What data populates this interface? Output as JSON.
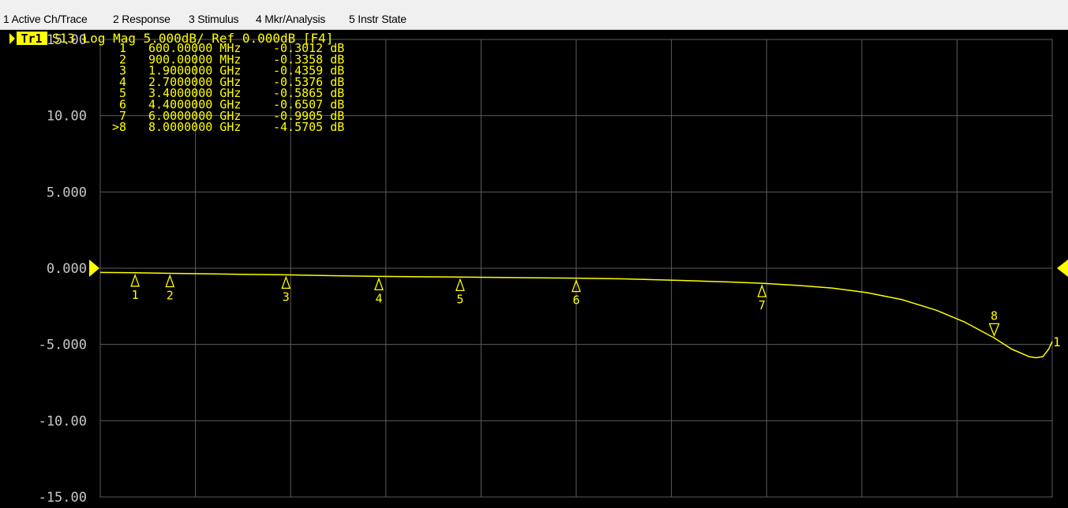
{
  "menu": {
    "items": [
      {
        "label": "1 Active Ch/Trace"
      },
      {
        "label": "2 Response"
      },
      {
        "label": "3 Stimulus"
      },
      {
        "label": "4 Mkr/Analysis"
      },
      {
        "label": "5 Instr State"
      }
    ]
  },
  "trace": {
    "badge": "Tr1",
    "description": "S13 Log Mag 5.000dB/ Ref 0.000dB [F4]",
    "end_label": "1"
  },
  "colors": {
    "trace": "#ffff00",
    "grid": "#5c5c5c",
    "axis_text": "#c8c8c8",
    "background": "#000000",
    "badge_bg": "#ffff00",
    "badge_text": "#000000"
  },
  "chart_data": {
    "type": "line",
    "title": "S13 Log Mag 5.000dB/ Ref 0.000dB [F4]",
    "ylabel": "",
    "xlabel": "",
    "ylim": [
      -15,
      15
    ],
    "xlim_ghz": [
      0.3,
      8.5
    ],
    "y_ticks": [
      "15.00",
      "10.00",
      "5.000",
      "0.000",
      "-5.000",
      "-10.00",
      "-15.00"
    ],
    "grid": true,
    "reference_level_db": 0,
    "series": [
      {
        "points": [
          [
            0.3,
            -0.28
          ],
          [
            0.6,
            -0.3012
          ],
          [
            0.9,
            -0.3358
          ],
          [
            1.5,
            -0.4
          ],
          [
            1.9,
            -0.4359
          ],
          [
            2.3,
            -0.49
          ],
          [
            2.7,
            -0.5376
          ],
          [
            3.0,
            -0.56
          ],
          [
            3.4,
            -0.5865
          ],
          [
            3.9,
            -0.62
          ],
          [
            4.4,
            -0.6507
          ],
          [
            4.8,
            -0.7
          ],
          [
            5.3,
            -0.8
          ],
          [
            5.7,
            -0.9
          ],
          [
            6.0,
            -0.9905
          ],
          [
            6.3,
            -1.12
          ],
          [
            6.6,
            -1.3
          ],
          [
            6.9,
            -1.6
          ],
          [
            7.2,
            -2.05
          ],
          [
            7.5,
            -2.75
          ],
          [
            7.75,
            -3.55
          ],
          [
            8.0,
            -4.5705
          ],
          [
            8.15,
            -5.3
          ],
          [
            8.3,
            -5.8
          ],
          [
            8.36,
            -5.87
          ],
          [
            8.42,
            -5.8
          ],
          [
            8.47,
            -5.3
          ],
          [
            8.5,
            -4.8
          ]
        ]
      }
    ],
    "markers": [
      {
        "id": "1",
        "readout_id": "1",
        "freq": "600.00000 MHz",
        "freq_ghz": 0.6,
        "value": "-0.3012 dB",
        "db": -0.3012,
        "label_below": true
      },
      {
        "id": "2",
        "readout_id": "2",
        "freq": "900.00000 MHz",
        "freq_ghz": 0.9,
        "value": "-0.3358 dB",
        "db": -0.3358,
        "label_below": true
      },
      {
        "id": "3",
        "readout_id": "3",
        "freq": "1.9000000 GHz",
        "freq_ghz": 1.9,
        "value": "-0.4359 dB",
        "db": -0.4359,
        "label_below": true
      },
      {
        "id": "4",
        "readout_id": "4",
        "freq": "2.7000000 GHz",
        "freq_ghz": 2.7,
        "value": "-0.5376 dB",
        "db": -0.5376,
        "label_below": true
      },
      {
        "id": "5",
        "readout_id": "5",
        "freq": "3.4000000 GHz",
        "freq_ghz": 3.4,
        "value": "-0.5865 dB",
        "db": -0.5865,
        "label_below": true
      },
      {
        "id": "6",
        "readout_id": "6",
        "freq": "4.4000000 GHz",
        "freq_ghz": 4.4,
        "value": "-0.6507 dB",
        "db": -0.6507,
        "label_below": true
      },
      {
        "id": "7",
        "readout_id": "7",
        "freq": "6.0000000 GHz",
        "freq_ghz": 6.0,
        "value": "-0.9905 dB",
        "db": -0.9905,
        "label_below": true
      },
      {
        "id": "8",
        "readout_id": ">8",
        "freq": "8.0000000 GHz",
        "freq_ghz": 8.0,
        "value": "-4.5705 dB",
        "db": -4.5705,
        "label_below": false
      }
    ]
  }
}
